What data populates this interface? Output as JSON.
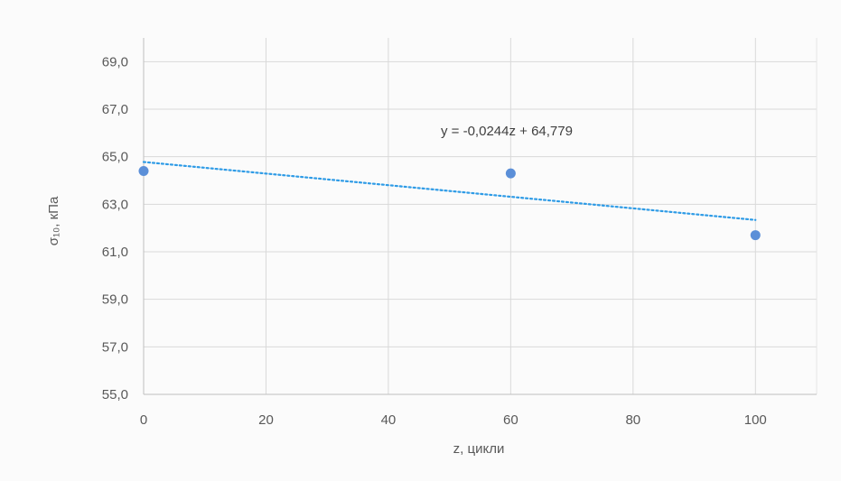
{
  "chart_data": {
    "type": "scatter",
    "xlabel": "z, цикли",
    "ylabel": "σ₁₀, кПа",
    "xlim": [
      0,
      110
    ],
    "ylim": [
      55,
      70
    ],
    "x_ticks": [
      "0",
      "20",
      "40",
      "60",
      "80",
      "100"
    ],
    "x_tick_values": [
      0,
      20,
      40,
      60,
      80,
      100
    ],
    "y_ticks": [
      "55,0",
      "57,0",
      "59,0",
      "61,0",
      "63,0",
      "65,0",
      "67,0",
      "69,0"
    ],
    "y_tick_values": [
      55,
      57,
      59,
      61,
      63,
      65,
      67,
      69
    ],
    "grid": true,
    "series": [
      {
        "x": [
          0,
          60,
          100
        ],
        "y": [
          64.4,
          64.3,
          61.7
        ],
        "color": "#5b8fd8"
      }
    ],
    "trendline": {
      "slope": -0.0244,
      "intercept": 64.779,
      "x_range": [
        0,
        100
      ],
      "style": "dotted",
      "color": "#2e9be6",
      "equation": "y = -0,0244z + 64,779"
    }
  }
}
